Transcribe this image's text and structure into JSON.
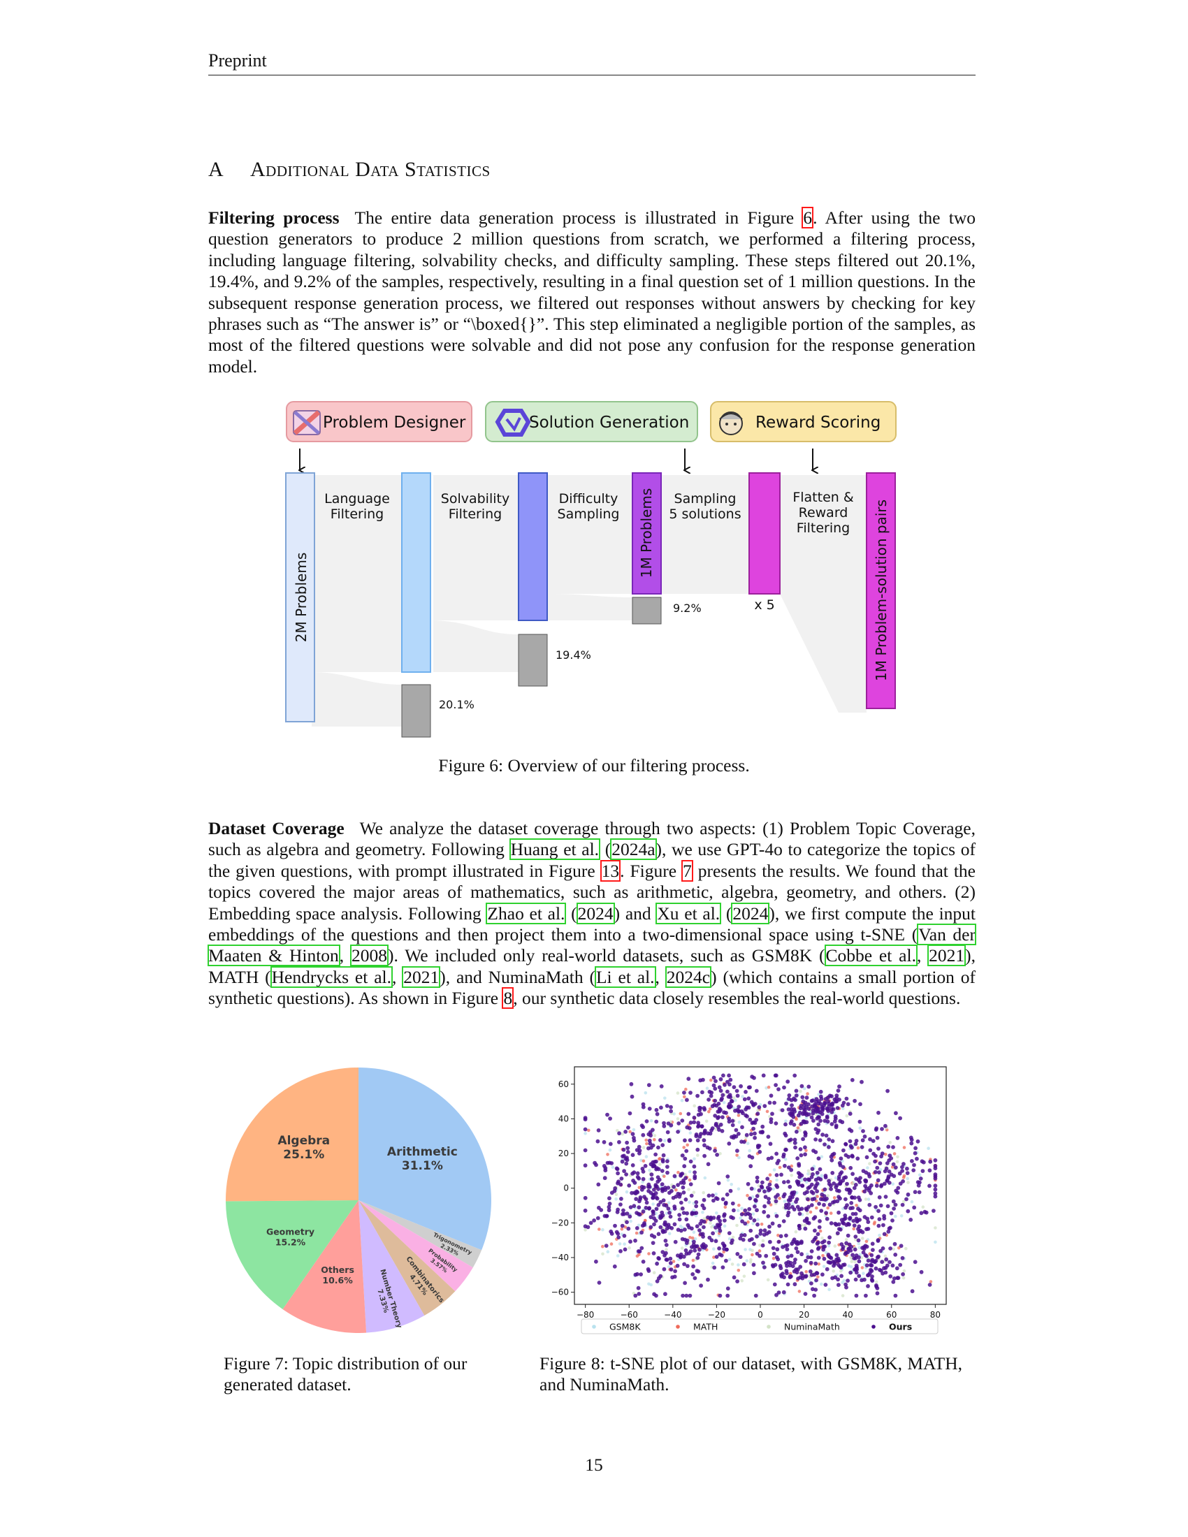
{
  "header": {
    "running_head": "Preprint"
  },
  "section": {
    "number": "A",
    "title": "Additional Data Statistics"
  },
  "filtering": {
    "heading": "Filtering process",
    "text_1": "The entire data generation process is illustrated in Figure ",
    "fig_ref": "6",
    "text_2": ". After using the two question generators to produce 2 million questions from scratch, we performed a filtering process, including language filtering, solvability checks, and difficulty sampling. These steps filtered out 20.1%, 19.4%, and 9.2% of the samples, respectively, resulting in a final question set of 1 million questions. In the subsequent response generation process, we filtered out responses without answers by checking for key phrases such as “The answer is” or “\\boxed{}”. This step eliminated a negligible portion of the samples, as most of the filtered questions were solvable and did not pose any confusion for the response generation model."
  },
  "figure6": {
    "stages": [
      "Problem Designer",
      "Solution Generation",
      "Reward Scoring"
    ],
    "steps": [
      "Language",
      "Filtering",
      "Solvability",
      "Filtering",
      "Difficulty",
      "Sampling",
      "Sampling",
      "5 solutions",
      "Flatten &",
      "Reward",
      "Filtering"
    ],
    "bars": [
      "2M Problems",
      "1M Problems",
      "1M Problem-solution pairs"
    ],
    "drops": [
      "20.1%",
      "19.4%",
      "9.2%"
    ],
    "multiplier": "x 5",
    "colors": {
      "problem": "#f9c6c9",
      "solution": "#d4ecd0",
      "reward": "#fbe7a8",
      "bar1": "#dfe9fb",
      "bar2": "#b4d8fb",
      "bar3": "#8f94f9",
      "bar4": "#b24ee8",
      "bar5": "#de44de",
      "drop": "#a8a8a8"
    }
  },
  "caption6": "Figure 6: Overview of our filtering process.",
  "coverage": {
    "heading": "Dataset Coverage",
    "t1": "We analyze the dataset coverage through two aspects: (1) Problem Topic Coverage, such as algebra and geometry. Following ",
    "r1a": "Huang et al.",
    "t2": " (",
    "r1b": "2024a",
    "t3": "), we use GPT-4o to categorize the topics of the given questions, with prompt illustrated in Figure ",
    "r2": "13",
    "t4": ". Figure ",
    "r3": "7",
    "t5": " presents the results. We found that the topics covered the major areas of mathematics, such as arithmetic, algebra, geometry, and others. (2) Embedding space analysis. Following ",
    "r4a": "Zhao et al.",
    "t6": " (",
    "r4b": "2024",
    "t7": ") and ",
    "r5a": "Xu et al.",
    "t8": " (",
    "r5b": "2024",
    "t9": "), we first compute the input embeddings of the questions and then project them into a two-dimensional space using t-SNE (",
    "r6a": "Van der Maaten & Hinton",
    "t10": ", ",
    "r6b": "2008",
    "t11": "). We included only real-world datasets, such as GSM8K (",
    "r7a": "Cobbe et al.",
    "t12": ", ",
    "r7b": "2021",
    "t13": "), MATH (",
    "r8a": "Hendrycks et al.",
    "t14": ", ",
    "r8b": "2021",
    "t15": "), and NuminaMath (",
    "r9a": "Li et al.",
    "t16": ", ",
    "r9b": "2024c",
    "t17": ") (which contains a small portion of synthetic questions). As shown in Figure ",
    "r10": "8",
    "t18": ", our synthetic data closely resembles the real-world questions."
  },
  "chart_data": [
    {
      "type": "pie",
      "categories": [
        "Arithmetic",
        "Trigonometry",
        "Probability",
        "Combinatorics",
        "Number Theory",
        "Others",
        "Geometry",
        "Algebra"
      ],
      "values": [
        31.1,
        2.33,
        3.57,
        4.71,
        7.33,
        10.6,
        15.2,
        25.1
      ],
      "value_labels": [
        "31.1%",
        "2.33%",
        "3.57%",
        "4.71%",
        "7.33%",
        "10.6%",
        "15.2%",
        "25.1%"
      ],
      "colors": [
        "#a1c9f4",
        "#cfcfcf",
        "#fab0e4",
        "#debb9b",
        "#d0bbff",
        "#ff9f9b",
        "#8de5a1",
        "#ffb482"
      ],
      "start_angle_deg": 90,
      "direction": "clockwise"
    },
    {
      "type": "scatter",
      "xlim": [
        -85,
        85
      ],
      "ylim": [
        -67,
        70
      ],
      "xticks": [
        -80,
        -60,
        -40,
        -20,
        0,
        20,
        40,
        60,
        80
      ],
      "yticks": [
        -60,
        -40,
        -20,
        0,
        20,
        40,
        60
      ],
      "tick_labels_x": [
        "−80",
        "−60",
        "−40",
        "−20",
        "0",
        "20",
        "40",
        "60",
        "80"
      ],
      "tick_labels_y": [
        "−60",
        "−40",
        "−20",
        "0",
        "20",
        "40",
        "60"
      ],
      "series": [
        {
          "name": "GSM8K",
          "color": "#b9e2ee",
          "count": 260
        },
        {
          "name": "MATH",
          "color": "#ef6a5a",
          "count": 170
        },
        {
          "name": "NuminaMath",
          "color": "#d4e3c8",
          "count": 160
        },
        {
          "name": "Ours",
          "color": "#4b0f8f",
          "count": 1500
        }
      ],
      "legend": "bottom"
    }
  ],
  "caption7": "Figure 7: Topic distribution of our generated dataset.",
  "caption8": "Figure 8: t-SNE plot of our dataset, with GSM8K, MATH, and NuminaMath.",
  "page_number": "15"
}
